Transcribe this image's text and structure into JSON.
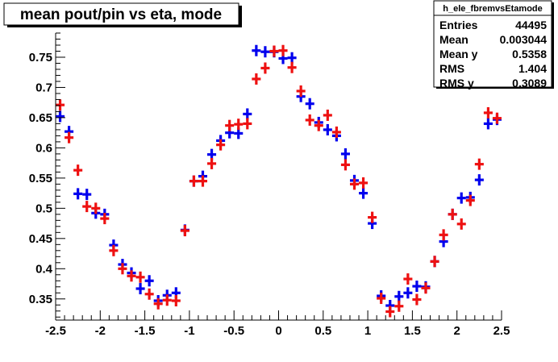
{
  "title": "mean pout/pin vs eta, mode",
  "stats": {
    "name": "h_ele_fbremvsEtamode",
    "rows": [
      {
        "label": "Entries",
        "value": "44495"
      },
      {
        "label": "Mean",
        "value": "0.003044"
      },
      {
        "label": "Mean y",
        "value": "0.5358"
      },
      {
        "label": "RMS",
        "value": "1.404"
      },
      {
        "label": "RMS y",
        "value": "0.3089"
      }
    ]
  },
  "colors": {
    "series_blue": "#0000ee",
    "series_red": "#ee1111",
    "axis": "#000000",
    "background": "#ffffff"
  },
  "chart_data": {
    "type": "scatter",
    "title": "mean pout/pin vs eta, mode",
    "xlabel": "",
    "ylabel": "",
    "xlim": [
      -2.5,
      2.5
    ],
    "ylim": [
      0.315,
      0.79
    ],
    "x_ticks": [
      -2.5,
      -2,
      -1.5,
      -1,
      -0.5,
      0,
      0.5,
      1,
      1.5,
      2,
      2.5
    ],
    "x_tick_labels": [
      "-2.5",
      "-2",
      "-1.5",
      "-1",
      "-0.5",
      "0",
      "0.5",
      "1",
      "1.5",
      "2",
      "2.5"
    ],
    "y_ticks": [
      0.35,
      0.4,
      0.45,
      0.5,
      0.55,
      0.6,
      0.65,
      0.7,
      0.75
    ],
    "y_tick_labels": [
      "0.35",
      "0.4",
      "0.45",
      "0.5",
      "0.55",
      "0.6",
      "0.65",
      "0.7",
      "0.75"
    ],
    "grid": false,
    "legend": "none",
    "marker_half_width": 0.05,
    "series": [
      {
        "color": "#0000ee",
        "x": [
          -2.45,
          -2.35,
          -2.25,
          -2.15,
          -2.05,
          -1.95,
          -1.85,
          -1.75,
          -1.65,
          -1.55,
          -1.45,
          -1.35,
          -1.25,
          -1.15,
          -1.05,
          -0.95,
          -0.85,
          -0.75,
          -0.65,
          -0.55,
          -0.45,
          -0.35,
          -0.25,
          -0.15,
          -0.05,
          0.05,
          0.15,
          0.25,
          0.35,
          0.45,
          0.55,
          0.65,
          0.75,
          0.85,
          0.95,
          1.05,
          1.15,
          1.25,
          1.35,
          1.45,
          1.55,
          1.65,
          1.75,
          1.85,
          1.95,
          2.05,
          2.15,
          2.25,
          2.35,
          2.45
        ],
        "y": [
          0.652,
          0.627,
          0.524,
          0.523,
          0.492,
          0.49,
          0.439,
          0.407,
          0.393,
          0.367,
          0.38,
          0.347,
          0.356,
          0.36,
          0.464,
          0.545,
          0.553,
          0.589,
          0.612,
          0.625,
          0.624,
          0.656,
          0.761,
          0.759,
          0.759,
          0.748,
          0.749,
          0.685,
          0.673,
          0.642,
          0.63,
          0.62,
          0.59,
          0.546,
          0.525,
          0.475,
          0.355,
          0.339,
          0.354,
          0.36,
          0.371,
          0.37,
          0.412,
          0.445,
          0.49,
          0.517,
          0.518,
          0.547,
          0.64,
          0.647
        ]
      },
      {
        "color": "#ee1111",
        "x": [
          -2.45,
          -2.35,
          -2.25,
          -2.15,
          -2.05,
          -1.95,
          -1.85,
          -1.75,
          -1.65,
          -1.55,
          -1.45,
          -1.35,
          -1.25,
          -1.15,
          -1.05,
          -0.95,
          -0.85,
          -0.75,
          -0.65,
          -0.55,
          -0.45,
          -0.35,
          -0.25,
          -0.15,
          -0.05,
          0.05,
          0.15,
          0.25,
          0.35,
          0.45,
          0.55,
          0.65,
          0.75,
          0.85,
          0.95,
          1.05,
          1.15,
          1.25,
          1.35,
          1.45,
          1.55,
          1.65,
          1.75,
          1.85,
          1.95,
          2.05,
          2.15,
          2.25,
          2.35,
          2.45
        ],
        "y": [
          0.671,
          0.617,
          0.563,
          0.503,
          0.5,
          0.483,
          0.43,
          0.4,
          0.388,
          0.386,
          0.358,
          0.342,
          0.348,
          0.347,
          0.463,
          0.545,
          0.545,
          0.574,
          0.605,
          0.637,
          0.639,
          0.64,
          0.714,
          0.732,
          0.76,
          0.761,
          0.733,
          0.694,
          0.646,
          0.637,
          0.654,
          0.626,
          0.572,
          0.54,
          0.542,
          0.485,
          0.351,
          0.329,
          0.338,
          0.383,
          0.349,
          0.368,
          0.412,
          0.456,
          0.49,
          0.474,
          0.513,
          0.573,
          0.658,
          0.649
        ]
      }
    ]
  }
}
